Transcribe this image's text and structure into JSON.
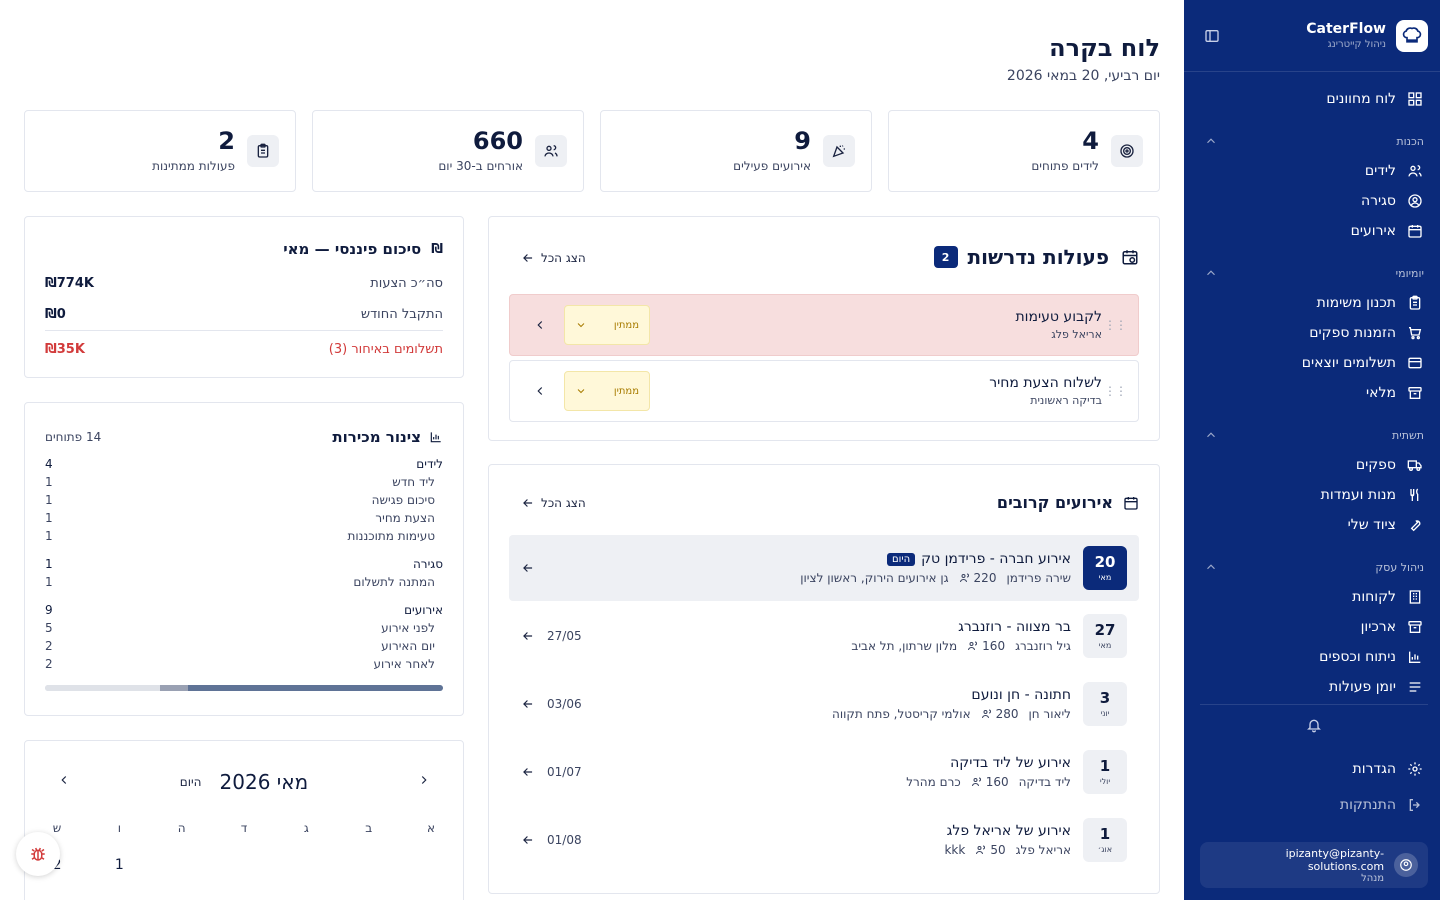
{
  "sidebar": {
    "brand_name": "CaterFlow",
    "brand_sub": "ניהול קייטרינג",
    "dashboard": "לוח מחוונים",
    "sections": [
      {
        "title": "הכנות",
        "items": [
          "לידים",
          "סגירה",
          "אירועים"
        ]
      },
      {
        "title": "יומיומי",
        "items": [
          "תכנון משימות",
          "הזמנות ספקים",
          "תשלומים יוצאים",
          "מלאי"
        ]
      },
      {
        "title": "תשתית",
        "items": [
          "ספקים",
          "מנות ועמדות",
          "ציוד שלי"
        ]
      },
      {
        "title": "ניהול עסק",
        "items": [
          "לקוחות",
          "ארכיון",
          "ניתוח וכספים",
          "יומן פעולות"
        ]
      }
    ],
    "settings": "הגדרות",
    "logout": "התנתקות",
    "user_email": "ipizanty@pizanty-solutions.com",
    "user_role": "מנהל"
  },
  "header": {
    "title": "לוח בקרה",
    "date": "יום רביעי, 20 במאי 2026"
  },
  "stats": [
    {
      "value": "4",
      "label": "לידים פתוחים",
      "icon": "target-icon"
    },
    {
      "value": "9",
      "label": "אירועים פעילים",
      "icon": "party-icon"
    },
    {
      "value": "660",
      "label": "אורחים ב-30 יום",
      "icon": "users-icon"
    },
    {
      "value": "2",
      "label": "פעולות ממתינות",
      "icon": "clipboard-icon"
    }
  ],
  "tasks": {
    "title": "פעולות נדרשות",
    "count": "2",
    "show_all": "הצג הכל",
    "items": [
      {
        "title": "לקבוע טעימות",
        "sub": "אריאל פלג",
        "status": "ממתין"
      },
      {
        "title": "לשלוח הצעת מחיר",
        "sub": "בדיקה ראשונית",
        "status": "ממתין"
      }
    ]
  },
  "events": {
    "title": "אירועים קרובים",
    "show_all": "הצג הכל",
    "today_tag": "היום",
    "items": [
      {
        "day": "20",
        "month": "מאי",
        "title": "אירוע חברה - פרידמן טק",
        "client": "שירה פרידמן",
        "guests": "220",
        "venue": "גן אירועים הירוק, ראשון לציון",
        "date": ""
      },
      {
        "day": "27",
        "month": "מאי",
        "title": "בר מצווה - רוזנברג",
        "client": "גיל רוזנברג",
        "guests": "160",
        "venue": "מלון שרתון, תל אביב",
        "date": "27/05"
      },
      {
        "day": "3",
        "month": "יוני",
        "title": "חתונה - חן ונועם",
        "client": "ליאור חן",
        "guests": "280",
        "venue": "אולמי קריסטל, פתח תקווה",
        "date": "03/06"
      },
      {
        "day": "1",
        "month": "יולי",
        "title": "אירוע של ליד בדיקה",
        "client": "ליד בדיקה",
        "guests": "160",
        "venue": "כרם מהרל",
        "date": "01/07"
      },
      {
        "day": "1",
        "month": "אוג׳",
        "title": "אירוע של אריאל פלג",
        "client": "אריאל פלג",
        "guests": "50",
        "venue": "kkk",
        "date": "01/08"
      }
    ]
  },
  "finance": {
    "title": "סיכום פיננסי — מאי",
    "rows": [
      {
        "label": "סה״כ הצעות",
        "value": "₪774K"
      },
      {
        "label": "התקבל החודש",
        "value": "₪0"
      },
      {
        "label": "תשלומים באיחור (3)",
        "value": "₪35K"
      }
    ]
  },
  "pipeline": {
    "title": "צינור מכירות",
    "open": "14 פתוחים",
    "groups": [
      {
        "name": "לידים",
        "count": "4",
        "rows": [
          {
            "label": "ליד חדש",
            "count": "1"
          },
          {
            "label": "סיכום פגישה",
            "count": "1"
          },
          {
            "label": "הצעת מחיר",
            "count": "1"
          },
          {
            "label": "טעימות מתוכננות",
            "count": "1"
          }
        ]
      },
      {
        "name": "סגירה",
        "count": "1",
        "rows": [
          {
            "label": "המתנה לתשלום",
            "count": "1"
          }
        ]
      },
      {
        "name": "אירועים",
        "count": "9",
        "rows": [
          {
            "label": "לפני אירוע",
            "count": "5"
          },
          {
            "label": "יום האירוע",
            "count": "2"
          },
          {
            "label": "לאחר אירוע",
            "count": "2"
          }
        ]
      }
    ],
    "progress": [
      0.64,
      0.07,
      0.29
    ]
  },
  "calendar": {
    "title": "מאי 2026",
    "today": "היום",
    "weekdays": [
      "א",
      "ב",
      "ג",
      "ד",
      "ה",
      "ו",
      "ש"
    ],
    "first_row": [
      "",
      "",
      "",
      "",
      "",
      "1",
      "2"
    ]
  },
  "colors": {
    "sidebar": "#0b2a7a",
    "overdue": "#d23b3b",
    "task_highlight": "#f7dede"
  }
}
